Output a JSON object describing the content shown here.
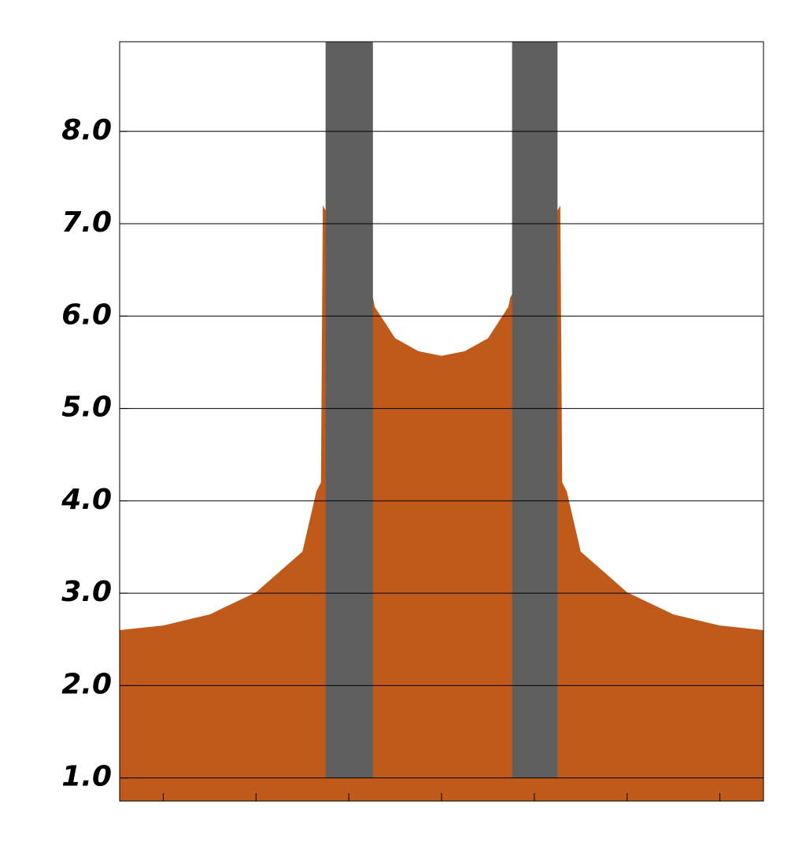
{
  "chart_data": {
    "type": "area",
    "xlim": [
      -3.47,
      3.47
    ],
    "ylim": [
      0.75,
      8.97
    ],
    "xticks": [
      -3,
      -2,
      -1,
      0,
      1,
      2,
      3
    ],
    "yticks": [
      {
        "value": 1,
        "label": "1.0"
      },
      {
        "value": 2,
        "label": "2.0"
      },
      {
        "value": 3,
        "label": "3.0"
      },
      {
        "value": 4,
        "label": "4.0"
      },
      {
        "value": 5,
        "label": "5.0"
      },
      {
        "value": 6,
        "label": "6.0"
      },
      {
        "value": 7,
        "label": "7.0"
      },
      {
        "value": 8,
        "label": "8.0"
      }
    ],
    "grid": true,
    "series": [
      {
        "color": "#bf5a1a",
        "x": [
          -3.47,
          -3,
          -2.5,
          -2,
          -1.5,
          -1.35,
          -1.3,
          -1.28,
          -0.74,
          -0.72,
          -0.5,
          -0.25,
          0,
          0.25,
          0.5,
          0.72,
          0.74,
          1.28,
          1.3,
          1.35,
          1.5,
          2,
          2.5,
          3,
          3.47
        ],
        "values": [
          2.6,
          2.65,
          2.77,
          3.01,
          3.45,
          4.1,
          4.2,
          7.2,
          6.2,
          6.1,
          5.76,
          5.62,
          5.57,
          5.62,
          5.76,
          6.1,
          6.2,
          7.2,
          4.2,
          4.1,
          3.45,
          3.01,
          2.77,
          2.65,
          2.6
        ]
      }
    ],
    "plates": [
      {
        "color": "#5f5f5f",
        "x": [
          -1.25,
          -0.74
        ],
        "y": [
          1.0,
          8.97
        ]
      },
      {
        "color": "#5f5f5f",
        "x": [
          0.76,
          1.25
        ],
        "y": [
          1.0,
          8.97
        ]
      }
    ]
  }
}
